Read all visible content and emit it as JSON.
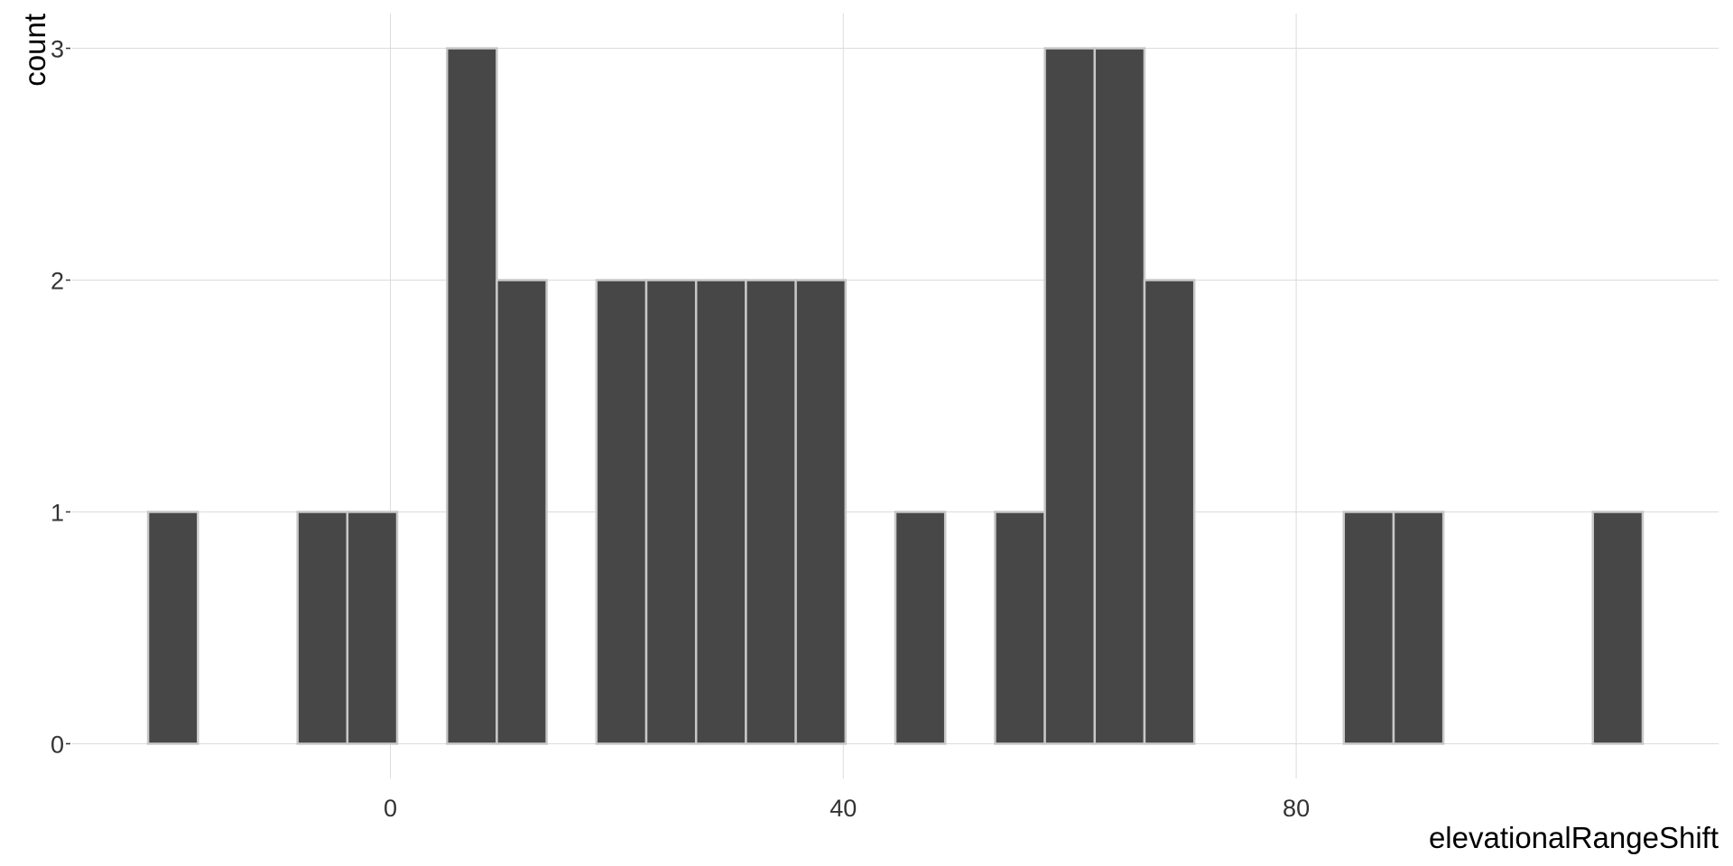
{
  "chart_data": {
    "type": "histogram",
    "x_label": "elevationalRangeShift",
    "y_label": "count",
    "bins": [
      -21.4,
      -17,
      -12.6,
      -8.2,
      -3.8,
      0.6,
      5,
      9.4,
      13.8,
      18.2,
      22.6,
      27,
      31.4,
      35.8,
      40.2,
      44.6,
      49,
      53.4,
      57.8,
      62.2,
      66.6,
      71,
      75.4,
      79.8,
      84.2,
      88.6,
      93,
      97.4,
      101.8,
      106.2,
      110.6
    ],
    "counts": [
      1,
      0,
      0,
      1,
      1,
      0,
      3,
      2,
      0,
      2,
      2,
      2,
      2,
      2,
      0,
      1,
      0,
      1,
      3,
      3,
      2,
      0,
      0,
      0,
      1,
      1,
      0,
      0,
      0,
      1
    ],
    "color": "#474747",
    "edge_color": "#c8c8c8",
    "xlim": [
      -28.1,
      117.3
    ],
    "ylim": [
      -0.15,
      3.15
    ],
    "xticks": [
      0,
      40,
      80
    ],
    "yticks": [
      0,
      1,
      2,
      3
    ],
    "grid": true
  }
}
